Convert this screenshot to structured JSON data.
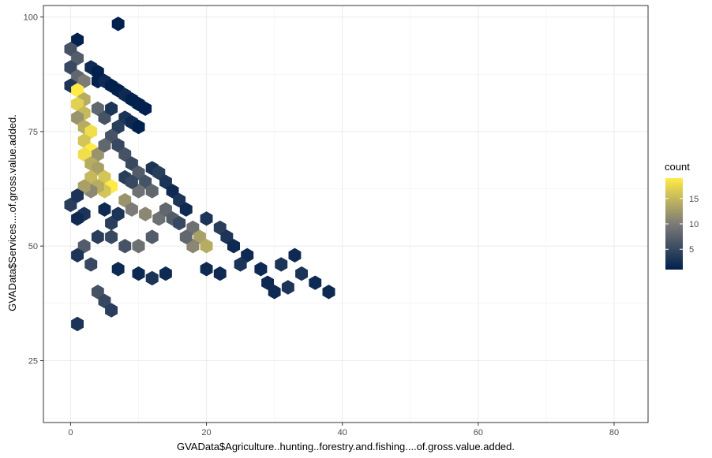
{
  "chart_data": {
    "type": "hexbin",
    "xlabel": "GVAData$Agriculture..hunting..forestry.and.fishing....of.gross.value.added.",
    "ylabel": "GVAData$Services....of.gross.value.added.",
    "xlim": [
      -4,
      85
    ],
    "ylim": [
      11.5,
      102.5
    ],
    "x_ticks": [
      0,
      20,
      40,
      60,
      80
    ],
    "x_tick_labels": [
      "0",
      "20",
      "40",
      "60",
      "80"
    ],
    "y_ticks": [
      25,
      50,
      75,
      100
    ],
    "y_tick_labels": [
      "25",
      "50",
      "75",
      "100"
    ],
    "grid": true,
    "legend": {
      "title": "count",
      "position": "right",
      "ticks": [
        5,
        10,
        15
      ],
      "tick_labels": [
        "5",
        "10",
        "15"
      ],
      "range": [
        1,
        19
      ],
      "color_low": "#00204D",
      "color_mid": "#7C7B78",
      "color_high": "#FFEA46"
    },
    "bins": [
      {
        "x": 7,
        "y": 98.5,
        "count": 1
      },
      {
        "x": 1,
        "y": 95,
        "count": 1
      },
      {
        "x": 0,
        "y": 93,
        "count": 6
      },
      {
        "x": 1,
        "y": 91,
        "count": 7
      },
      {
        "x": 0,
        "y": 89,
        "count": 5
      },
      {
        "x": 1,
        "y": 87,
        "count": 8
      },
      {
        "x": 2,
        "y": 86,
        "count": 10
      },
      {
        "x": 3,
        "y": 89,
        "count": 2
      },
      {
        "x": 4,
        "y": 88,
        "count": 1
      },
      {
        "x": 4,
        "y": 86,
        "count": 1
      },
      {
        "x": 5,
        "y": 86,
        "count": 2
      },
      {
        "x": 6,
        "y": 85,
        "count": 1
      },
      {
        "x": 0,
        "y": 85,
        "count": 3
      },
      {
        "x": 1,
        "y": 84,
        "count": 19
      },
      {
        "x": 2,
        "y": 82,
        "count": 14
      },
      {
        "x": 1,
        "y": 81,
        "count": 17
      },
      {
        "x": 2,
        "y": 79,
        "count": 15
      },
      {
        "x": 1,
        "y": 78,
        "count": 12
      },
      {
        "x": 2,
        "y": 76,
        "count": 14
      },
      {
        "x": 3,
        "y": 75,
        "count": 18
      },
      {
        "x": 2,
        "y": 73,
        "count": 16
      },
      {
        "x": 3,
        "y": 71,
        "count": 19
      },
      {
        "x": 2,
        "y": 70,
        "count": 18
      },
      {
        "x": 4,
        "y": 70,
        "count": 12
      },
      {
        "x": 3,
        "y": 68,
        "count": 14
      },
      {
        "x": 4,
        "y": 67,
        "count": 13
      },
      {
        "x": 3,
        "y": 65,
        "count": 15
      },
      {
        "x": 5,
        "y": 65,
        "count": 16
      },
      {
        "x": 6,
        "y": 63,
        "count": 19
      },
      {
        "x": 5,
        "y": 62,
        "count": 16
      },
      {
        "x": 4,
        "y": 63,
        "count": 14
      },
      {
        "x": 3,
        "y": 62,
        "count": 11
      },
      {
        "x": 2,
        "y": 63,
        "count": 13
      },
      {
        "x": 4,
        "y": 80,
        "count": 8
      },
      {
        "x": 5,
        "y": 78,
        "count": 6
      },
      {
        "x": 6,
        "y": 80,
        "count": 3
      },
      {
        "x": 7,
        "y": 84,
        "count": 1
      },
      {
        "x": 8,
        "y": 83,
        "count": 2
      },
      {
        "x": 9,
        "y": 82,
        "count": 1
      },
      {
        "x": 10,
        "y": 81,
        "count": 1
      },
      {
        "x": 11,
        "y": 80,
        "count": 1
      },
      {
        "x": 8,
        "y": 78,
        "count": 3
      },
      {
        "x": 9,
        "y": 77,
        "count": 2
      },
      {
        "x": 10,
        "y": 76,
        "count": 1
      },
      {
        "x": 7,
        "y": 76,
        "count": 4
      },
      {
        "x": 6,
        "y": 74,
        "count": 6
      },
      {
        "x": 5,
        "y": 72,
        "count": 8
      },
      {
        "x": 7,
        "y": 72,
        "count": 5
      },
      {
        "x": 8,
        "y": 70,
        "count": 6
      },
      {
        "x": 9,
        "y": 68,
        "count": 5
      },
      {
        "x": 10,
        "y": 66,
        "count": 7
      },
      {
        "x": 11,
        "y": 64,
        "count": 6
      },
      {
        "x": 12,
        "y": 62,
        "count": 8
      },
      {
        "x": 10,
        "y": 62,
        "count": 9
      },
      {
        "x": 8,
        "y": 60,
        "count": 12
      },
      {
        "x": 9,
        "y": 58,
        "count": 10
      },
      {
        "x": 11,
        "y": 57,
        "count": 11
      },
      {
        "x": 13,
        "y": 56,
        "count": 9
      },
      {
        "x": 14,
        "y": 58,
        "count": 8
      },
      {
        "x": 15,
        "y": 56,
        "count": 7
      },
      {
        "x": 16,
        "y": 55,
        "count": 5
      },
      {
        "x": 18,
        "y": 54,
        "count": 9
      },
      {
        "x": 19,
        "y": 52,
        "count": 13
      },
      {
        "x": 20,
        "y": 50,
        "count": 14
      },
      {
        "x": 18,
        "y": 50,
        "count": 11
      },
      {
        "x": 17,
        "y": 52,
        "count": 8
      },
      {
        "x": 12,
        "y": 52,
        "count": 7
      },
      {
        "x": 10,
        "y": 50,
        "count": 9
      },
      {
        "x": 8,
        "y": 50,
        "count": 6
      },
      {
        "x": 6,
        "y": 52,
        "count": 5
      },
      {
        "x": 4,
        "y": 52,
        "count": 4
      },
      {
        "x": 2,
        "y": 50,
        "count": 7
      },
      {
        "x": 1,
        "y": 48,
        "count": 3
      },
      {
        "x": 3,
        "y": 46,
        "count": 5
      },
      {
        "x": 4,
        "y": 40,
        "count": 6
      },
      {
        "x": 5,
        "y": 38,
        "count": 5
      },
      {
        "x": 6,
        "y": 36,
        "count": 4
      },
      {
        "x": 1,
        "y": 33,
        "count": 3
      },
      {
        "x": 6,
        "y": 55,
        "count": 4
      },
      {
        "x": 7,
        "y": 57,
        "count": 3
      },
      {
        "x": 5,
        "y": 58,
        "count": 2
      },
      {
        "x": 2,
        "y": 57,
        "count": 3
      },
      {
        "x": 1,
        "y": 56,
        "count": 2
      },
      {
        "x": 0,
        "y": 59,
        "count": 4
      },
      {
        "x": 1,
        "y": 61,
        "count": 3
      },
      {
        "x": 8,
        "y": 65,
        "count": 4
      },
      {
        "x": 9,
        "y": 64,
        "count": 5
      },
      {
        "x": 12,
        "y": 67,
        "count": 3
      },
      {
        "x": 13,
        "y": 66,
        "count": 4
      },
      {
        "x": 14,
        "y": 64,
        "count": 3
      },
      {
        "x": 15,
        "y": 62,
        "count": 2
      },
      {
        "x": 16,
        "y": 60,
        "count": 3
      },
      {
        "x": 17,
        "y": 58,
        "count": 2
      },
      {
        "x": 20,
        "y": 56,
        "count": 3
      },
      {
        "x": 22,
        "y": 54,
        "count": 4
      },
      {
        "x": 23,
        "y": 52,
        "count": 3
      },
      {
        "x": 24,
        "y": 50,
        "count": 2
      },
      {
        "x": 26,
        "y": 48,
        "count": 2
      },
      {
        "x": 25,
        "y": 46,
        "count": 3
      },
      {
        "x": 28,
        "y": 45,
        "count": 2
      },
      {
        "x": 29,
        "y": 42,
        "count": 2
      },
      {
        "x": 31,
        "y": 46,
        "count": 3
      },
      {
        "x": 33,
        "y": 48,
        "count": 2
      },
      {
        "x": 34,
        "y": 44,
        "count": 3
      },
      {
        "x": 36,
        "y": 42,
        "count": 2
      },
      {
        "x": 38,
        "y": 40,
        "count": 2
      },
      {
        "x": 30,
        "y": 40,
        "count": 2
      },
      {
        "x": 32,
        "y": 41,
        "count": 3
      },
      {
        "x": 7,
        "y": 45,
        "count": 2
      },
      {
        "x": 10,
        "y": 44,
        "count": 2
      },
      {
        "x": 12,
        "y": 43,
        "count": 3
      },
      {
        "x": 14,
        "y": 44,
        "count": 2
      },
      {
        "x": 20,
        "y": 45,
        "count": 2
      },
      {
        "x": 22,
        "y": 44,
        "count": 2
      }
    ]
  }
}
